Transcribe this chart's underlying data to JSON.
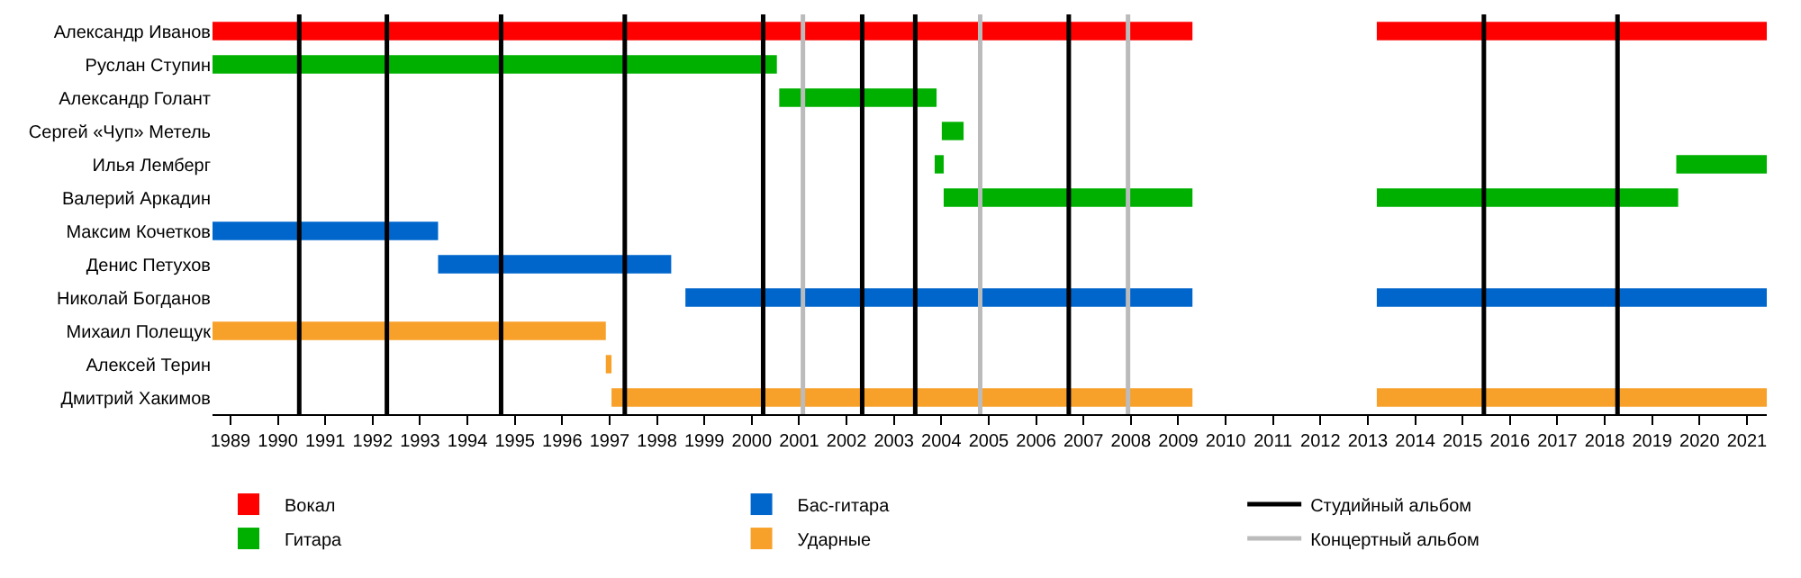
{
  "chart_data": {
    "type": "bar",
    "orientation": "horizontal",
    "categories": [
      "Александр Иванов",
      "Руслан Ступин",
      "Александр Голант",
      "Сергей «Чуп» Метель",
      "Илья Лемберг",
      "Валерий Аркадин",
      "Максим Кочетков",
      "Денис Петухов",
      "Николай Богданов",
      "Михаил Полещук",
      "Алексей Терин",
      "Дмитрий Хакимов"
    ],
    "series": [
      {
        "name": "Вокал",
        "color": "#ff0000",
        "base": [
          1988.62,
          null,
          null,
          null,
          null,
          null,
          null,
          null,
          null,
          null,
          null,
          null
        ],
        "values": [
          20.68,
          null,
          null,
          null,
          null,
          null,
          null,
          null,
          null,
          null,
          null,
          null
        ]
      },
      {
        "color": "#ff0000",
        "base": [
          2013.19,
          null,
          null,
          null,
          null,
          null,
          null,
          null,
          null,
          null,
          null,
          null
        ],
        "values": [
          8.23,
          null,
          null,
          null,
          null,
          null,
          null,
          null,
          null,
          null,
          null,
          null
        ]
      },
      {
        "name": "Гитара",
        "color": "#00b000",
        "base": [
          null,
          1988.62,
          2000.58,
          2004.01,
          2003.86,
          2004.05,
          null,
          null,
          null,
          null,
          null,
          null
        ],
        "values": [
          null,
          11.91,
          3.32,
          0.46,
          0.19,
          5.25,
          null,
          null,
          null,
          null,
          null,
          null
        ]
      },
      {
        "color": "#00b000",
        "base": [
          null,
          null,
          null,
          null,
          2019.51,
          2013.19,
          null,
          null,
          null,
          null,
          null,
          null
        ],
        "values": [
          null,
          null,
          null,
          null,
          1.91,
          6.36,
          null,
          null,
          null,
          null,
          null,
          null
        ]
      },
      {
        "name": "Бас-гитара",
        "color": "#0066cc",
        "base": [
          null,
          null,
          null,
          null,
          null,
          null,
          1988.62,
          1993.38,
          1998.6,
          null,
          null,
          null
        ],
        "values": [
          null,
          null,
          null,
          null,
          null,
          null,
          4.76,
          4.92,
          10.7,
          null,
          null,
          null
        ]
      },
      {
        "color": "#0066cc",
        "base": [
          null,
          null,
          null,
          null,
          null,
          null,
          null,
          null,
          2013.19,
          null,
          null,
          null
        ],
        "values": [
          null,
          null,
          null,
          null,
          null,
          null,
          null,
          null,
          8.23,
          null,
          null,
          null
        ]
      },
      {
        "name": "Ударные",
        "color": "#f8a12a",
        "base": [
          null,
          null,
          null,
          null,
          null,
          null,
          null,
          null,
          null,
          1988.62,
          1996.92,
          1997.04
        ],
        "values": [
          null,
          null,
          null,
          null,
          null,
          null,
          null,
          null,
          null,
          8.3,
          0.12,
          12.26
        ]
      },
      {
        "color": "#f8a12a",
        "base": [
          null,
          null,
          null,
          null,
          null,
          null,
          null,
          null,
          null,
          null,
          null,
          2013.19
        ],
        "values": [
          null,
          null,
          null,
          null,
          null,
          null,
          null,
          null,
          null,
          null,
          null,
          8.23
        ]
      }
    ],
    "ref_lines": [
      {
        "axis": "x",
        "value": 1990.45,
        "color": "#000000"
      },
      {
        "axis": "x",
        "value": 1992.3,
        "color": "#000000"
      },
      {
        "axis": "x",
        "value": 1994.71,
        "color": "#000000"
      },
      {
        "axis": "x",
        "value": 1997.32,
        "color": "#000000"
      },
      {
        "axis": "x",
        "value": 2000.24,
        "color": "#000000"
      },
      {
        "axis": "x",
        "value": 2001.08,
        "color": "#bbbbbb"
      },
      {
        "axis": "x",
        "value": 2002.33,
        "color": "#000000"
      },
      {
        "axis": "x",
        "value": 2003.45,
        "color": "#000000"
      },
      {
        "axis": "x",
        "value": 2004.82,
        "color": "#bbbbbb"
      },
      {
        "axis": "x",
        "value": 2006.69,
        "color": "#000000"
      },
      {
        "axis": "x",
        "value": 2007.94,
        "color": "#bbbbbb"
      },
      {
        "axis": "x",
        "value": 2015.45,
        "color": "#000000"
      },
      {
        "axis": "x",
        "value": 2018.27,
        "color": "#000000"
      }
    ],
    "annotations": [
      "Студийный альбом",
      "Концертный альбом"
    ],
    "xlim": [
      1988.62,
      2021.42
    ],
    "xticks": [
      1989,
      1990,
      1991,
      1992,
      1993,
      1994,
      1995,
      1996,
      1997,
      1998,
      1999,
      2000,
      2001,
      2002,
      2003,
      2004,
      2005,
      2006,
      2007,
      2008,
      2009,
      2010,
      2011,
      2012,
      2013,
      2014,
      2015,
      2016,
      2017,
      2018,
      2019,
      2020,
      2021
    ],
    "legend": "bottom",
    "grid": false
  }
}
